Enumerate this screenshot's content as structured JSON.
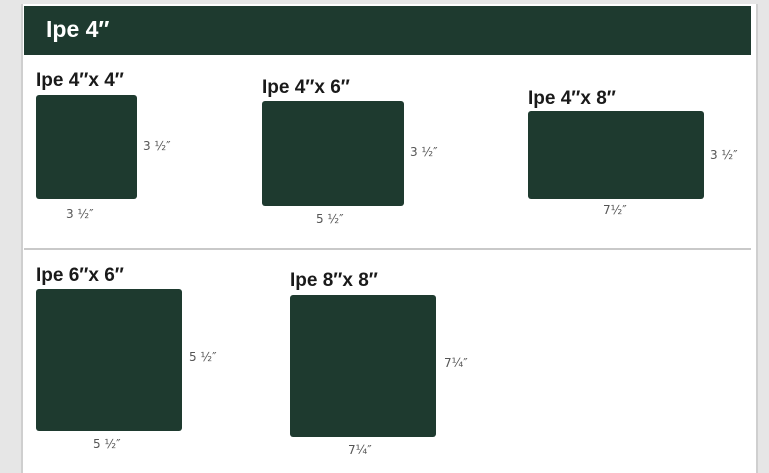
{
  "header": {
    "title": "Ipe 4″"
  },
  "colors": {
    "board": "#1e3a2f",
    "header_bg": "#1e3a2f",
    "background": "#ffffff"
  },
  "boards": [
    {
      "title": "Ipe 4″x 4″",
      "height_label": "3 ½″",
      "width_label": "3 ½″"
    },
    {
      "title": "Ipe 4″x 6″",
      "height_label": "3 ½″",
      "width_label": "5 ½″"
    },
    {
      "title": "Ipe 4″x 8″",
      "height_label": "3 ½″",
      "width_label": "7½″"
    },
    {
      "title": "Ipe 6″x 6″",
      "height_label": "5 ½″",
      "width_label": "5 ½″"
    },
    {
      "title": "Ipe 8″x 8″",
      "height_label": "7¼″",
      "width_label": "7¼″"
    }
  ]
}
